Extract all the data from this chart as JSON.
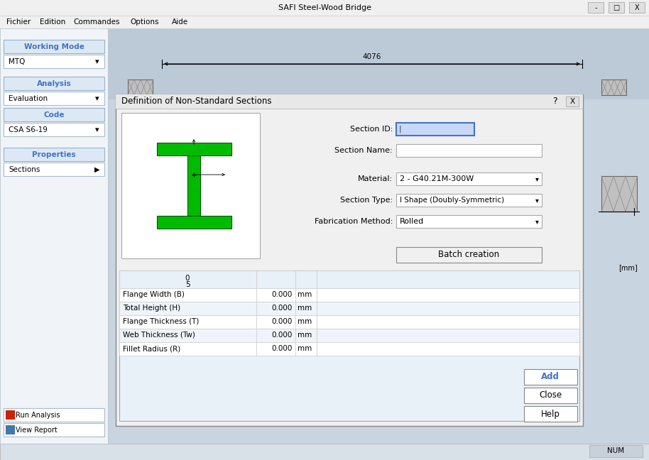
{
  "title_bar": "SAFI Steel-Wood Bridge",
  "bg_color": "#f0f0f0",
  "menu_items": [
    "Fichier",
    "Edition",
    "Commandes",
    "Options",
    "Aide"
  ],
  "working_mode_label": "Working Mode",
  "mtq_label": "MTQ",
  "analysis_label": "Analysis",
  "evaluation_label": "Evaluation",
  "code_label": "Code",
  "csa_label": "CSA S6-19",
  "properties_label": "Properties",
  "sections_label": "Sections",
  "run_label": "Run Analysis",
  "report_label": "View Report",
  "dialog_title": "Definition of Non-Standard Sections",
  "section_id_label": "Section ID:",
  "section_name_label": "Section Name:",
  "material_label": "Material:",
  "material_value": "2 - G40.21M-300W",
  "section_type_label": "Section Type:",
  "section_type_value": "I Shape (Doubly-Symmetric)",
  "fabrication_label": "Fabrication Method:",
  "fabrication_value": "Rolled",
  "batch_button": "Batch creation",
  "table_rows": [
    "Flange Width (B)",
    "Total Height (H)",
    "Flange Thickness (T)",
    "Web Thickness (Tw)",
    "Fillet Radius (R)"
  ],
  "table_values": [
    "0.000",
    "0.000",
    "0.000",
    "0.000",
    "0.000"
  ],
  "table_units": [
    "mm",
    "mm",
    "mm",
    "mm",
    "mm"
  ],
  "add_button": "Add",
  "close_button": "Close",
  "help_button": "Help",
  "green_color": "#00bb00",
  "dim_text": "4076",
  "mm_label": "[mm]",
  "header_row": [
    "0",
    "5"
  ],
  "light_blue": "#dce9f5",
  "table_bg": "#e8f0f8",
  "blue_text": "#4472c4",
  "sidebar_bg": "#f0f4f8",
  "dialog_bg": "#f0f0f0",
  "canvas_bg": "#c8d4e0",
  "status_bg": "#d8e0e8"
}
